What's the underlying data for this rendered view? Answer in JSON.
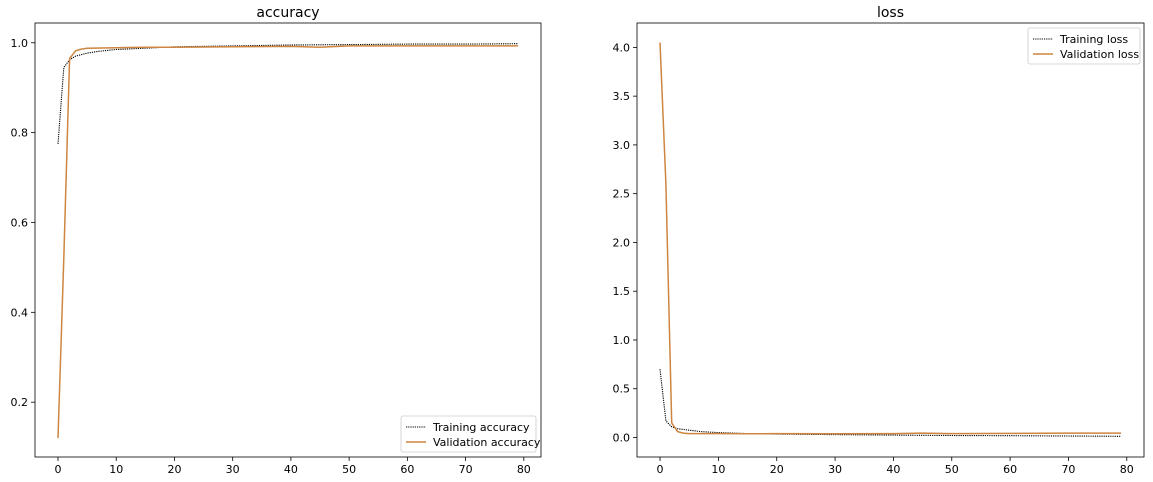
{
  "chart_data": [
    {
      "type": "line",
      "title": "accuracy",
      "xlabel": "",
      "ylabel": "",
      "xlim": [
        -3.95,
        82.95
      ],
      "ylim": [
        0.078,
        1.044
      ],
      "xticks": [
        0,
        10,
        20,
        30,
        40,
        50,
        60,
        70,
        80
      ],
      "yticks": [
        0.2,
        0.4,
        0.6,
        0.8,
        1.0
      ],
      "ytick_labels": [
        "0.2",
        "0.4",
        "0.6",
        "0.8",
        "1.0"
      ],
      "legend": "lower-right",
      "series": [
        {
          "name": "Training accuracy",
          "color": "#000000",
          "style": "dotted",
          "points": [
            [
              0,
              0.775
            ],
            [
              1,
              0.945
            ],
            [
              2,
              0.962
            ],
            [
              3,
              0.97
            ],
            [
              5,
              0.977
            ],
            [
              7,
              0.981
            ],
            [
              10,
              0.985
            ],
            [
              15,
              0.988
            ],
            [
              20,
              0.991
            ],
            [
              30,
              0.993
            ],
            [
              40,
              0.995
            ],
            [
              50,
              0.996
            ],
            [
              60,
              0.997
            ],
            [
              70,
              0.997
            ],
            [
              79,
              0.998
            ]
          ]
        },
        {
          "name": "Validation accuracy",
          "color": "#cd853f",
          "style": "solid",
          "points": [
            [
              0,
              0.12
            ],
            [
              1,
              0.52
            ],
            [
              2,
              0.965
            ],
            [
              3,
              0.982
            ],
            [
              4,
              0.986
            ],
            [
              5,
              0.988
            ],
            [
              10,
              0.989
            ],
            [
              15,
              0.99
            ],
            [
              20,
              0.99
            ],
            [
              30,
              0.991
            ],
            [
              40,
              0.992
            ],
            [
              45,
              0.99
            ],
            [
              50,
              0.993
            ],
            [
              60,
              0.993
            ],
            [
              70,
              0.993
            ],
            [
              79,
              0.993
            ]
          ]
        }
      ]
    },
    {
      "type": "line",
      "title": "loss",
      "xlabel": "",
      "ylabel": "",
      "xlim": [
        -3.95,
        82.95
      ],
      "ylim": [
        -0.2,
        4.25
      ],
      "xticks": [
        0,
        10,
        20,
        30,
        40,
        50,
        60,
        70,
        80
      ],
      "yticks": [
        0.0,
        0.5,
        1.0,
        1.5,
        2.0,
        2.5,
        3.0,
        3.5,
        4.0
      ],
      "ytick_labels": [
        "0.0",
        "0.5",
        "1.0",
        "1.5",
        "2.0",
        "2.5",
        "3.0",
        "3.5",
        "4.0"
      ],
      "legend": "top-right",
      "series": [
        {
          "name": "Training loss",
          "color": "#000000",
          "style": "dotted",
          "points": [
            [
              0,
              0.7
            ],
            [
              1,
              0.17
            ],
            [
              2,
              0.11
            ],
            [
              3,
              0.09
            ],
            [
              5,
              0.075
            ],
            [
              7,
              0.06
            ],
            [
              10,
              0.05
            ],
            [
              15,
              0.04
            ],
            [
              20,
              0.035
            ],
            [
              30,
              0.03
            ],
            [
              40,
              0.025
            ],
            [
              50,
              0.02
            ],
            [
              60,
              0.018
            ],
            [
              70,
              0.015
            ],
            [
              79,
              0.012
            ]
          ]
        },
        {
          "name": "Validation loss",
          "color": "#cd853f",
          "style": "solid",
          "points": [
            [
              0,
              4.05
            ],
            [
              1,
              2.6
            ],
            [
              2,
              0.15
            ],
            [
              3,
              0.06
            ],
            [
              4,
              0.045
            ],
            [
              5,
              0.04
            ],
            [
              10,
              0.04
            ],
            [
              15,
              0.038
            ],
            [
              20,
              0.04
            ],
            [
              30,
              0.038
            ],
            [
              40,
              0.04
            ],
            [
              45,
              0.045
            ],
            [
              50,
              0.04
            ],
            [
              60,
              0.042
            ],
            [
              70,
              0.045
            ],
            [
              79,
              0.045
            ]
          ]
        }
      ]
    }
  ]
}
